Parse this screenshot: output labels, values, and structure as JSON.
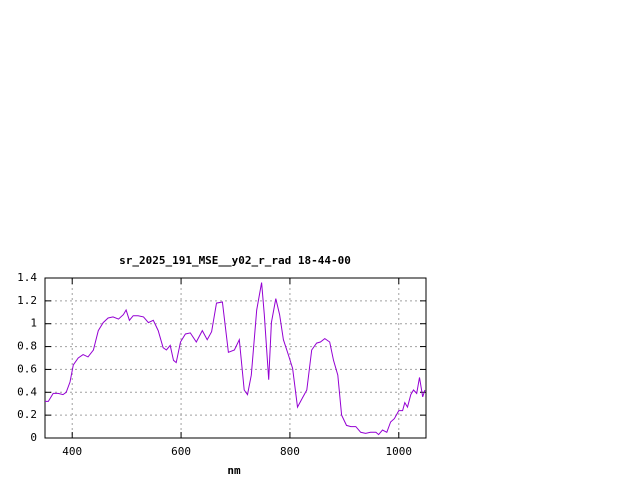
{
  "chart_data": {
    "type": "line",
    "title": "sr_2025_191_MSE__y02_r_rad 18-44-00",
    "x_label": "nm",
    "x": [
      350,
      356,
      365,
      374,
      383,
      389,
      396,
      402,
      411,
      420,
      429,
      439,
      448,
      457,
      466,
      475,
      485,
      494,
      499,
      505,
      512,
      521,
      531,
      540,
      549,
      558,
      567,
      573,
      580,
      586,
      591,
      599,
      608,
      617,
      628,
      639,
      648,
      656,
      665,
      676,
      687,
      698,
      707,
      716,
      722,
      729,
      739,
      748,
      753,
      761,
      766,
      774,
      781,
      788,
      797,
      805,
      814,
      823,
      831,
      840,
      849,
      856,
      864,
      873,
      880,
      888,
      895,
      904,
      912,
      921,
      930,
      939,
      948,
      958,
      963,
      970,
      978,
      985,
      992,
      1000,
      1007,
      1011,
      1016,
      1022,
      1027,
      1033,
      1038,
      1044,
      1048
    ],
    "series": [
      {
        "color": "#9400d3",
        "values": [
          0.32,
          0.32,
          0.39,
          0.39,
          0.38,
          0.4,
          0.49,
          0.64,
          0.7,
          0.73,
          0.71,
          0.77,
          0.94,
          1.01,
          1.05,
          1.06,
          1.04,
          1.08,
          1.12,
          1.03,
          1.07,
          1.07,
          1.06,
          1.01,
          1.03,
          0.94,
          0.79,
          0.77,
          0.81,
          0.68,
          0.66,
          0.84,
          0.91,
          0.92,
          0.84,
          0.94,
          0.86,
          0.93,
          1.18,
          1.19,
          0.75,
          0.77,
          0.86,
          0.42,
          0.38,
          0.55,
          1.12,
          1.36,
          1.08,
          0.51,
          1.01,
          1.22,
          1.08,
          0.86,
          0.73,
          0.61,
          0.27,
          0.35,
          0.42,
          0.77,
          0.83,
          0.84,
          0.87,
          0.84,
          0.68,
          0.55,
          0.2,
          0.11,
          0.1,
          0.1,
          0.05,
          0.04,
          0.05,
          0.05,
          0.03,
          0.07,
          0.05,
          0.14,
          0.17,
          0.24,
          0.24,
          0.31,
          0.27,
          0.38,
          0.42,
          0.39,
          0.53,
          0.36,
          0.42
        ]
      }
    ],
    "xlim": [
      350,
      1050
    ],
    "xticks": [
      400,
      600,
      800,
      1000
    ],
    "ylim": [
      0,
      1.4
    ],
    "yticks": [
      0,
      0.2,
      0.4,
      0.6,
      0.8,
      1,
      1.2,
      1.4
    ],
    "grid": true
  }
}
